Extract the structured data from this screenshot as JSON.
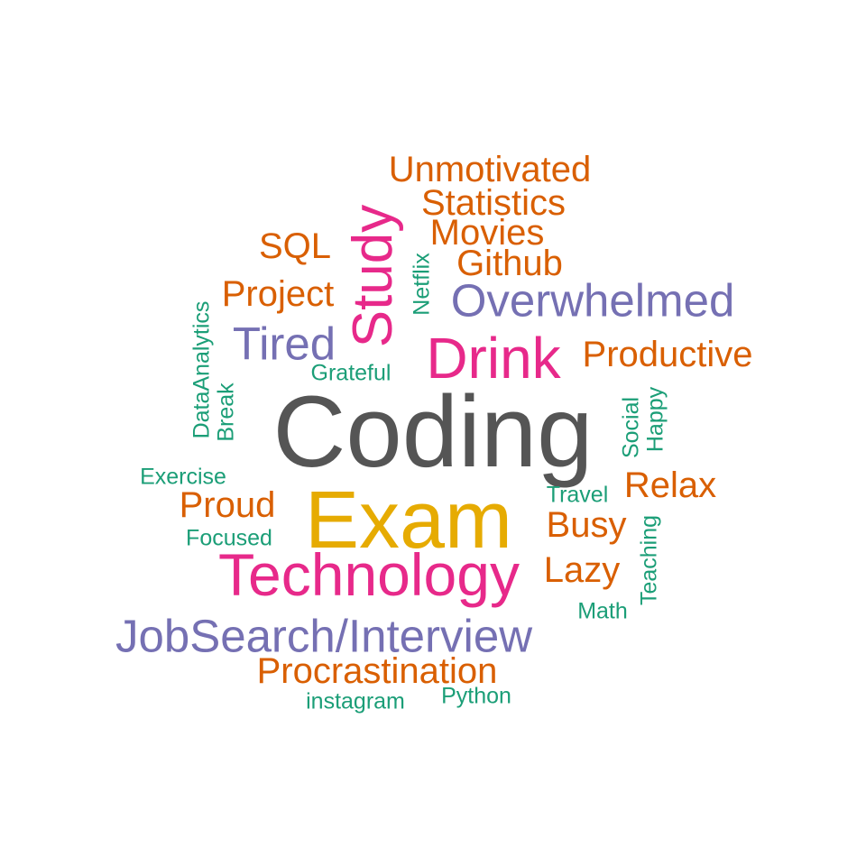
{
  "chart_data": {
    "type": "wordcloud",
    "palette": {
      "orange": "#D95F02",
      "teal": "#1B9E77",
      "purple": "#7570B3",
      "magenta": "#E7298A",
      "gold": "#E6AB02",
      "gray": "#666666"
    },
    "words": [
      {
        "text": "Coding",
        "color": "#555555",
        "orientation": "horizontal"
      },
      {
        "text": "Exam",
        "color": "#E6AB02",
        "orientation": "horizontal"
      },
      {
        "text": "Technology",
        "color": "#E7298A",
        "orientation": "horizontal"
      },
      {
        "text": "Drink",
        "color": "#E7298A",
        "orientation": "horizontal"
      },
      {
        "text": "Study",
        "color": "#E7298A",
        "orientation": "vertical"
      },
      {
        "text": "JobSearch/Interview",
        "color": "#7570B3",
        "orientation": "horizontal"
      },
      {
        "text": "Overwhelmed",
        "color": "#7570B3",
        "orientation": "horizontal"
      },
      {
        "text": "Tired",
        "color": "#7570B3",
        "orientation": "horizontal"
      },
      {
        "text": "Unmotivated",
        "color": "#D95F02",
        "orientation": "horizontal"
      },
      {
        "text": "Statistics",
        "color": "#D95F02",
        "orientation": "horizontal"
      },
      {
        "text": "Movies",
        "color": "#D95F02",
        "orientation": "horizontal"
      },
      {
        "text": "Github",
        "color": "#D95F02",
        "orientation": "horizontal"
      },
      {
        "text": "SQL",
        "color": "#D95F02",
        "orientation": "horizontal"
      },
      {
        "text": "Project",
        "color": "#D95F02",
        "orientation": "horizontal"
      },
      {
        "text": "Productive",
        "color": "#D95F02",
        "orientation": "horizontal"
      },
      {
        "text": "Relax",
        "color": "#D95F02",
        "orientation": "horizontal"
      },
      {
        "text": "Proud",
        "color": "#D95F02",
        "orientation": "horizontal"
      },
      {
        "text": "Busy",
        "color": "#D95F02",
        "orientation": "horizontal"
      },
      {
        "text": "Lazy",
        "color": "#D95F02",
        "orientation": "horizontal"
      },
      {
        "text": "Procrastination",
        "color": "#D95F02",
        "orientation": "horizontal"
      },
      {
        "text": "Netflix",
        "color": "#1B9E77",
        "orientation": "vertical"
      },
      {
        "text": "DataAnalytics",
        "color": "#1B9E77",
        "orientation": "vertical"
      },
      {
        "text": "Break",
        "color": "#1B9E77",
        "orientation": "vertical"
      },
      {
        "text": "Grateful",
        "color": "#1B9E77",
        "orientation": "horizontal"
      },
      {
        "text": "Social",
        "color": "#1B9E77",
        "orientation": "vertical"
      },
      {
        "text": "Happy",
        "color": "#1B9E77",
        "orientation": "vertical"
      },
      {
        "text": "Exercise",
        "color": "#1B9E77",
        "orientation": "horizontal"
      },
      {
        "text": "Travel",
        "color": "#1B9E77",
        "orientation": "horizontal"
      },
      {
        "text": "Focused",
        "color": "#1B9E77",
        "orientation": "horizontal"
      },
      {
        "text": "Teaching",
        "color": "#1B9E77",
        "orientation": "vertical"
      },
      {
        "text": "Math",
        "color": "#1B9E77",
        "orientation": "horizontal"
      },
      {
        "text": "instagram",
        "color": "#1B9E77",
        "orientation": "horizontal"
      },
      {
        "text": "Python",
        "color": "#1B9E77",
        "orientation": "horizontal"
      }
    ]
  }
}
